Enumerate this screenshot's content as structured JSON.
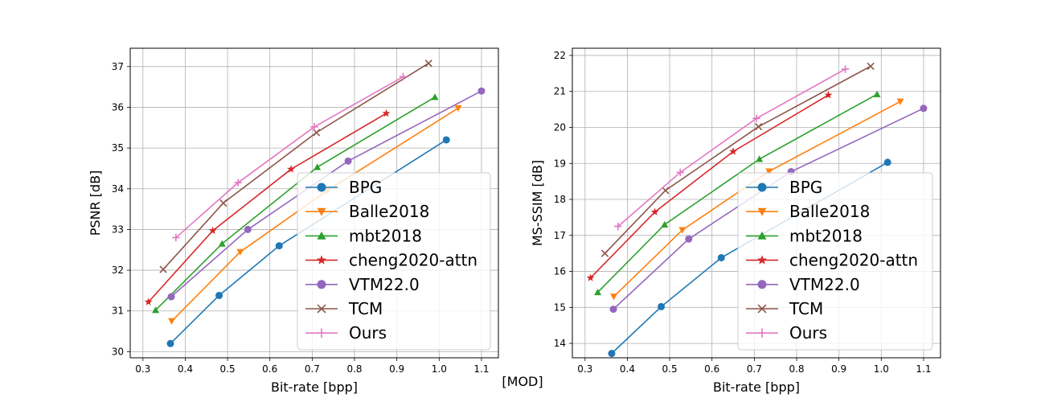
{
  "footer_text": "[MOD]",
  "chart_data": [
    {
      "type": "line",
      "xlabel": "Bit-rate [bpp]",
      "ylabel": "PSNR [dB]",
      "xlim": [
        0.27,
        1.14
      ],
      "ylim": [
        29.85,
        37.45
      ],
      "xticks": [
        "0.3",
        "0.4",
        "0.5",
        "0.6",
        "0.7",
        "0.8",
        "0.9",
        "1.0",
        "1.1"
      ],
      "yticks": [
        "30",
        "31",
        "32",
        "33",
        "34",
        "35",
        "36",
        "37"
      ],
      "grid": true,
      "legend_position": "lower-right",
      "series": [
        {
          "name": "BPG",
          "color": "#1f77b4",
          "marker": "circle",
          "x": [
            0.365,
            0.48,
            0.622,
            1.017
          ],
          "y": [
            30.2,
            31.38,
            32.6,
            35.2
          ]
        },
        {
          "name": "Balle2018",
          "color": "#ff7f0e",
          "marker": "triangle-down",
          "x": [
            0.368,
            0.53,
            0.735,
            1.045
          ],
          "y": [
            30.75,
            32.45,
            33.95,
            35.98
          ]
        },
        {
          "name": "mbt2018",
          "color": "#2ca02c",
          "marker": "triangle-up",
          "x": [
            0.33,
            0.487,
            0.712,
            0.99
          ],
          "y": [
            31.02,
            32.65,
            34.53,
            36.25
          ]
        },
        {
          "name": "cheng2020-attn",
          "color": "#d62728",
          "marker": "star",
          "x": [
            0.313,
            0.465,
            0.65,
            0.875
          ],
          "y": [
            31.22,
            32.97,
            34.48,
            35.85
          ]
        },
        {
          "name": "VTM22.0",
          "color": "#9467bd",
          "marker": "circle",
          "x": [
            0.367,
            0.548,
            0.785,
            1.1
          ],
          "y": [
            31.35,
            33.0,
            34.68,
            36.4
          ]
        },
        {
          "name": "TCM",
          "color": "#8c564b",
          "marker": "x",
          "x": [
            0.348,
            0.49,
            0.71,
            0.975
          ],
          "y": [
            32.02,
            33.65,
            35.38,
            37.08
          ]
        },
        {
          "name": "Ours",
          "color": "#e377c2",
          "marker": "plus",
          "x": [
            0.378,
            0.525,
            0.705,
            0.915
          ],
          "y": [
            32.8,
            34.15,
            35.52,
            36.75
          ]
        }
      ]
    },
    {
      "type": "line",
      "xlabel": "Bit-rate [bpp]",
      "ylabel": "MS-SSIM [dB]",
      "xlim": [
        0.27,
        1.14
      ],
      "ylim": [
        13.6,
        22.2
      ],
      "xticks": [
        "0.3",
        "0.4",
        "0.5",
        "0.6",
        "0.7",
        "0.8",
        "0.9",
        "1.0",
        "1.1"
      ],
      "yticks": [
        "14",
        "15",
        "16",
        "17",
        "18",
        "19",
        "20",
        "21",
        "22"
      ],
      "grid": true,
      "legend_position": "lower-right",
      "series": [
        {
          "name": "BPG",
          "color": "#1f77b4",
          "marker": "circle",
          "x": [
            0.363,
            0.48,
            0.622,
            1.015
          ],
          "y": [
            13.72,
            15.02,
            16.38,
            19.03
          ]
        },
        {
          "name": "Balle2018",
          "color": "#ff7f0e",
          "marker": "triangle-down",
          "x": [
            0.368,
            0.53,
            0.735,
            1.045
          ],
          "y": [
            15.3,
            17.15,
            18.78,
            20.72
          ]
        },
        {
          "name": "mbt2018",
          "color": "#2ca02c",
          "marker": "triangle-up",
          "x": [
            0.33,
            0.488,
            0.712,
            0.99
          ],
          "y": [
            15.42,
            17.3,
            19.12,
            20.92
          ]
        },
        {
          "name": "cheng2020-attn",
          "color": "#d62728",
          "marker": "star",
          "x": [
            0.313,
            0.465,
            0.65,
            0.875
          ],
          "y": [
            15.82,
            17.65,
            19.33,
            20.9
          ]
        },
        {
          "name": "VTM22.0",
          "color": "#9467bd",
          "marker": "circle",
          "x": [
            0.367,
            0.545,
            0.787,
            1.1
          ],
          "y": [
            14.95,
            16.9,
            18.77,
            20.53
          ]
        },
        {
          "name": "TCM",
          "color": "#8c564b",
          "marker": "x",
          "x": [
            0.347,
            0.49,
            0.71,
            0.975
          ],
          "y": [
            16.5,
            18.25,
            20.02,
            21.7
          ]
        },
        {
          "name": "Ours",
          "color": "#e377c2",
          "marker": "plus",
          "x": [
            0.378,
            0.525,
            0.705,
            0.915
          ],
          "y": [
            17.25,
            18.75,
            20.25,
            21.62
          ]
        }
      ]
    }
  ]
}
